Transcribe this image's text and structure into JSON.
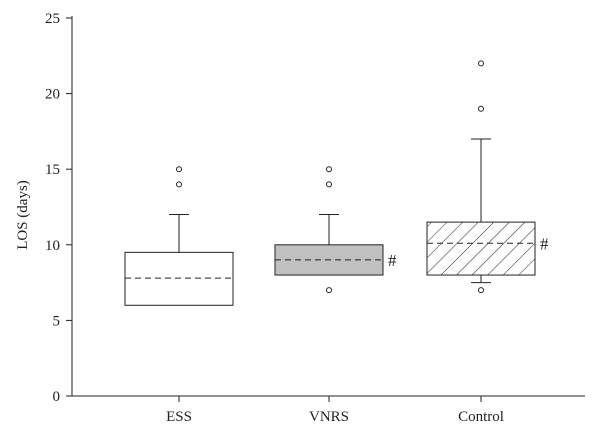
{
  "chart_data": {
    "type": "box",
    "title": "",
    "xlabel": "",
    "ylabel": "LOS (days)",
    "ylim": [
      0,
      25
    ],
    "yticks": [
      0,
      5,
      10,
      15,
      20,
      25
    ],
    "grid": false,
    "categories": [
      "ESS",
      "VNRS",
      "Control"
    ],
    "boxes": [
      {
        "category": "ESS",
        "whisker_low": 6,
        "q1": 6,
        "median": 7.8,
        "q3": 9.5,
        "whisker_high": 12,
        "outliers": [
          14,
          15
        ],
        "fill": "#ffffff",
        "pattern": "none",
        "annotation": ""
      },
      {
        "category": "VNRS",
        "whisker_low": 8,
        "q1": 8,
        "median": 9,
        "q3": 10,
        "whisker_high": 12,
        "outliers": [
          7,
          14,
          15
        ],
        "fill": "#c0c0c0",
        "pattern": "none",
        "annotation": "#"
      },
      {
        "category": "Control",
        "whisker_low": 7.5,
        "q1": 8,
        "median": 10.1,
        "q3": 11.5,
        "whisker_high": 17,
        "outliers": [
          7,
          19,
          22
        ],
        "fill": "#ffffff",
        "pattern": "diagonal-hatch",
        "annotation": "#"
      }
    ]
  }
}
